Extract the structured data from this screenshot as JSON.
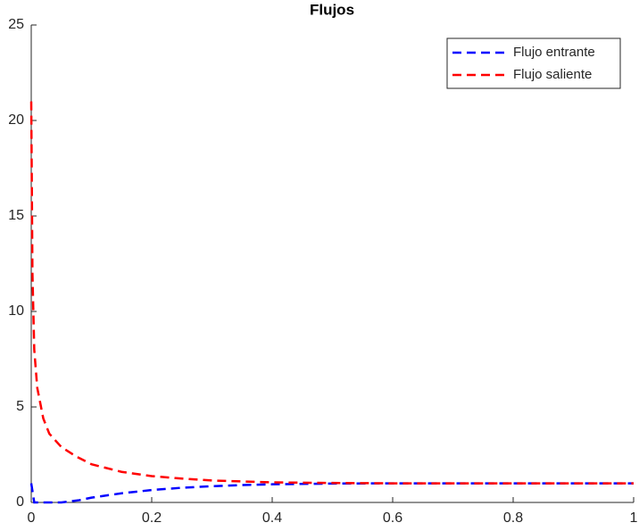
{
  "chart_data": {
    "type": "line",
    "title": "Flujos",
    "xlim": [
      0,
      1
    ],
    "ylim": [
      0,
      25
    ],
    "xticks": [
      0,
      0.2,
      0.4,
      0.6,
      0.8,
      1
    ],
    "yticks": [
      0,
      5,
      10,
      15,
      20,
      25
    ],
    "grid": false,
    "legend": "northeast",
    "series": [
      {
        "name": "Flujo entrante",
        "color": "#0000ff",
        "x": [
          0,
          0.005,
          0.02,
          0.05,
          0.08,
          0.1,
          0.15,
          0.2,
          0.25,
          0.3,
          0.35,
          0.4,
          0.5,
          0.6,
          0.8,
          1
        ],
        "values": [
          1,
          0,
          0,
          0,
          0.12,
          0.25,
          0.48,
          0.65,
          0.77,
          0.85,
          0.91,
          0.95,
          0.99,
          1,
          1,
          1
        ]
      },
      {
        "name": "Flujo saliente",
        "color": "#ff0000",
        "x": [
          0,
          0.002,
          0.005,
          0.01,
          0.02,
          0.03,
          0.05,
          0.075,
          0.1,
          0.15,
          0.2,
          0.25,
          0.3,
          0.4,
          0.5,
          0.6,
          0.8,
          1
        ],
        "values": [
          21,
          12,
          8,
          6,
          4.4,
          3.6,
          2.9,
          2.4,
          2.0,
          1.6,
          1.38,
          1.25,
          1.15,
          1.05,
          1.02,
          1,
          1,
          1
        ]
      }
    ]
  }
}
